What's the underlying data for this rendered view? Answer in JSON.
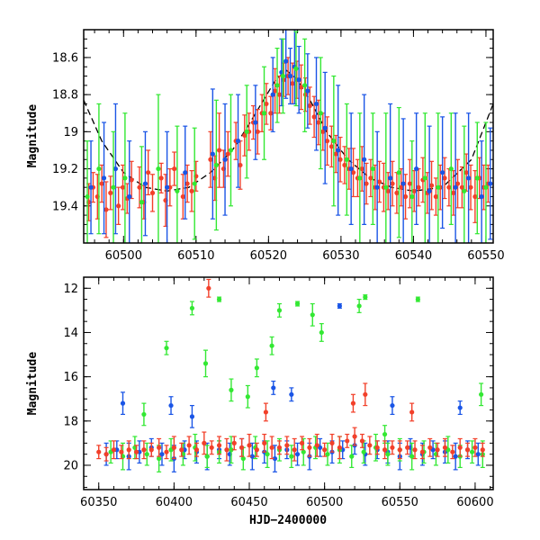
{
  "colors": {
    "green": "#33e833",
    "blue": "#1a55e6",
    "red": "#f2402a",
    "model": "#000000",
    "frame": "#000000"
  },
  "chart_data": [
    {
      "type": "scatter",
      "title": "",
      "xlabel": "",
      "ylabel": "Magnitude",
      "xlim": [
        60494.5,
        60551
      ],
      "ylim": [
        19.6,
        18.45
      ],
      "y_inverted": true,
      "grid": false,
      "x_ticks": [
        60500,
        60510,
        60520,
        60530,
        60540,
        60550
      ],
      "x_tick_labels": [
        "60500",
        "60510",
        "60520",
        "60530",
        "60540",
        "60550"
      ],
      "y_ticks": [
        18.6,
        18.8,
        19.0,
        19.2,
        19.4
      ],
      "y_tick_labels": [
        "18.6",
        "18.8",
        "19",
        "19.2",
        "19.4"
      ],
      "model_curve": {
        "x": [
          60494.5,
          60497,
          60500,
          60503,
          60506,
          60509,
          60512,
          60515,
          60517,
          60519,
          60521,
          60522.5,
          60524,
          60526,
          60528,
          60531,
          60534,
          60537,
          60540,
          60544,
          60548,
          60551
        ],
        "y": [
          18.83,
          19.05,
          19.22,
          19.3,
          19.32,
          19.3,
          19.22,
          19.1,
          18.98,
          18.85,
          18.72,
          18.67,
          18.72,
          18.85,
          19.0,
          19.15,
          19.25,
          19.3,
          19.32,
          19.3,
          19.15,
          18.85
        ]
      },
      "series": [
        {
          "color_key": "red",
          "x": [
            60495.2,
            60495.8,
            60496.4,
            60497.0,
            60497.6,
            60498.2,
            60499.3,
            60499.9,
            60500.5,
            60501.1,
            60502.2,
            60502.8,
            60503.4,
            60504.0,
            60505.2,
            60505.8,
            60506.4,
            60507.0,
            60508.2,
            60508.8,
            60509.4,
            60510.0,
            60512.0,
            60512.6,
            60513.2,
            60513.8,
            60514.4,
            60515.5,
            60516.1,
            60516.7,
            60517.3,
            60517.9,
            60518.5,
            60519.1,
            60519.7,
            60520.3,
            60520.9,
            60521.5,
            60522.1,
            60522.7,
            60523.3,
            60523.9,
            60524.5,
            60525.1,
            60525.7,
            60526.3,
            60526.9,
            60527.5,
            60528.1,
            60528.7,
            60529.3,
            60529.9,
            60530.5,
            60531.1,
            60531.7,
            60532.3,
            60532.9,
            60533.5,
            60534.1,
            60534.7,
            60535.3,
            60535.9,
            60536.5,
            60537.1,
            60537.7,
            60538.3,
            60538.9,
            60539.5,
            60540.1,
            60540.7,
            60541.3,
            60541.9,
            60542.5,
            60543.1,
            60543.7,
            60544.3,
            60544.9,
            60545.5,
            60546.1,
            60546.7,
            60547.3,
            60547.9,
            60548.5,
            60549.1,
            60549.7,
            60550.3
          ],
          "y": [
            19.38,
            19.3,
            19.35,
            19.28,
            19.42,
            19.33,
            19.4,
            19.3,
            19.36,
            19.26,
            19.3,
            19.38,
            19.22,
            19.33,
            19.25,
            19.37,
            19.3,
            19.2,
            19.35,
            19.28,
            19.32,
            19.24,
            19.15,
            19.25,
            19.1,
            19.2,
            19.12,
            19.05,
            19.18,
            19.02,
            19.0,
            18.95,
            19.0,
            18.9,
            18.85,
            18.9,
            18.78,
            18.8,
            18.72,
            18.7,
            18.74,
            18.72,
            18.76,
            18.8,
            18.86,
            18.92,
            18.95,
            19.0,
            19.05,
            19.08,
            19.12,
            19.15,
            19.18,
            19.2,
            19.22,
            19.25,
            19.2,
            19.28,
            19.25,
            19.3,
            19.27,
            19.3,
            19.32,
            19.28,
            19.33,
            19.3,
            19.35,
            19.28,
            19.32,
            19.3,
            19.26,
            19.33,
            19.29,
            19.35,
            19.3,
            19.25,
            19.3,
            19.33,
            19.28,
            19.3,
            19.22,
            19.3,
            19.35,
            19.25,
            19.3,
            19.28
          ],
          "err": [
            0.1,
            0.08,
            0.12,
            0.1,
            0.15,
            0.09,
            0.1,
            0.12,
            0.08,
            0.1,
            0.11,
            0.09,
            0.12,
            0.1,
            0.08,
            0.14,
            0.1,
            0.09,
            0.12,
            0.1,
            0.11,
            0.08,
            0.15,
            0.12,
            0.2,
            0.1,
            0.12,
            0.1,
            0.13,
            0.11,
            0.1,
            0.09,
            0.12,
            0.1,
            0.11,
            0.09,
            0.12,
            0.1,
            0.09,
            0.1,
            0.11,
            0.1,
            0.12,
            0.09,
            0.1,
            0.11,
            0.12,
            0.1,
            0.13,
            0.11,
            0.1,
            0.12,
            0.1,
            0.11,
            0.13,
            0.1,
            0.12,
            0.11,
            0.1,
            0.12,
            0.11,
            0.13,
            0.1,
            0.12,
            0.11,
            0.1,
            0.12,
            0.13,
            0.11,
            0.1,
            0.12,
            0.11,
            0.13,
            0.1,
            0.12,
            0.11,
            0.1,
            0.12,
            0.13,
            0.11,
            0.1,
            0.12,
            0.14,
            0.11,
            0.12,
            0.1
          ]
        },
        {
          "color_key": "blue",
          "x": [
            60495.5,
            60497.3,
            60498.9,
            60500.8,
            60503.0,
            60506.0,
            60508.5,
            60512.3,
            60514.0,
            60515.8,
            60518.2,
            60520.6,
            60521.8,
            60522.4,
            60523.0,
            60523.6,
            60524.2,
            60525.4,
            60526.6,
            60527.8,
            60529.6,
            60531.4,
            60533.2,
            60535.0,
            60536.8,
            60538.6,
            60540.4,
            60542.2,
            60544.0,
            60545.8,
            60547.6,
            60549.4,
            60550.6
          ],
          "y": [
            19.3,
            19.25,
            19.2,
            19.35,
            19.28,
            19.3,
            19.22,
            19.12,
            19.15,
            19.05,
            18.95,
            18.8,
            18.68,
            18.62,
            18.7,
            18.65,
            18.72,
            18.78,
            18.85,
            18.98,
            19.1,
            19.2,
            19.15,
            19.3,
            19.25,
            19.28,
            19.2,
            19.32,
            19.22,
            19.3,
            19.25,
            19.35,
            19.28
          ],
          "err": [
            0.25,
            0.3,
            0.35,
            0.3,
            0.28,
            0.3,
            0.25,
            0.35,
            0.3,
            0.25,
            0.2,
            0.2,
            0.18,
            0.2,
            0.15,
            0.2,
            0.18,
            0.2,
            0.25,
            0.3,
            0.35,
            0.3,
            0.35,
            0.3,
            0.4,
            0.35,
            0.3,
            0.35,
            0.3,
            0.4,
            0.35,
            0.3,
            0.3
          ]
        },
        {
          "color_key": "green",
          "x": [
            60495.0,
            60496.6,
            60498.6,
            60500.2,
            60502.5,
            60504.8,
            60507.4,
            60509.8,
            60512.8,
            60514.8,
            60517.0,
            60519.4,
            60521.2,
            60522.0,
            60523.8,
            60525.0,
            60527.2,
            60529.0,
            60530.8,
            60532.6,
            60534.4,
            60536.2,
            60538.0,
            60539.8,
            60541.6,
            60543.4,
            60545.2,
            60547.0,
            60548.8,
            60550.0
          ],
          "y": [
            19.35,
            19.2,
            19.3,
            19.25,
            19.38,
            19.2,
            19.32,
            19.28,
            19.18,
            19.1,
            19.0,
            18.9,
            18.75,
            18.7,
            18.66,
            18.75,
            18.9,
            19.05,
            19.15,
            19.25,
            19.2,
            19.3,
            19.22,
            19.35,
            19.25,
            19.3,
            19.2,
            19.32,
            19.25,
            19.3
          ],
          "err": [
            0.3,
            0.35,
            0.3,
            0.35,
            0.3,
            0.4,
            0.35,
            0.3,
            0.35,
            0.3,
            0.25,
            0.25,
            0.2,
            0.2,
            0.2,
            0.25,
            0.3,
            0.35,
            0.3,
            0.35,
            0.3,
            0.4,
            0.35,
            0.3,
            0.35,
            0.4,
            0.3,
            0.35,
            0.3,
            0.35
          ]
        }
      ]
    },
    {
      "type": "scatter",
      "title": "",
      "xlabel": "HJD−2400000",
      "ylabel": "Magnitude",
      "xlim": [
        60340,
        60612
      ],
      "ylim": [
        21.1,
        11.5
      ],
      "y_inverted": true,
      "grid": false,
      "x_ticks": [
        60350,
        60400,
        60450,
        60500,
        60550,
        60600
      ],
      "x_tick_labels": [
        "60350",
        "60400",
        "60450",
        "60500",
        "60550",
        "60600"
      ],
      "y_ticks": [
        12,
        14,
        16,
        18,
        20
      ],
      "y_tick_labels": [
        "12",
        "14",
        "16",
        "18",
        "20"
      ],
      "series": [
        {
          "color_key": "blue",
          "x": [
            60355,
            60362,
            60370,
            60377,
            60385,
            60392,
            60400,
            60407,
            60415,
            60422,
            60430,
            60437,
            60445,
            60452,
            60460,
            60467,
            60475,
            60482,
            60490,
            60497,
            60505,
            60512,
            60520,
            60527,
            60535,
            60542,
            60550,
            60557,
            60565,
            60572,
            60580,
            60587,
            60595,
            60602,
            60366,
            60398,
            60412,
            60466,
            60478,
            60510,
            60545,
            60590
          ],
          "y": [
            19.5,
            19.3,
            19.6,
            19.4,
            19.2,
            19.5,
            19.7,
            19.3,
            19.4,
            19.6,
            19.3,
            19.5,
            19.2,
            19.6,
            19.4,
            19.7,
            19.3,
            19.5,
            19.6,
            19.2,
            19.4,
            19.3,
            19.1,
            19.5,
            19.3,
            19.4,
            19.6,
            19.2,
            19.5,
            19.3,
            19.4,
            19.6,
            19.3,
            19.5,
            17.2,
            17.3,
            17.8,
            16.5,
            16.8,
            12.8,
            17.3,
            17.4
          ],
          "err": [
            0.5,
            0.4,
            0.6,
            0.5,
            0.4,
            0.5,
            0.6,
            0.4,
            0.5,
            0.6,
            0.4,
            0.5,
            0.4,
            0.6,
            0.5,
            0.6,
            0.4,
            0.5,
            0.6,
            0.4,
            0.5,
            0.4,
            0.4,
            0.5,
            0.4,
            0.5,
            0.6,
            0.4,
            0.5,
            0.4,
            0.5,
            0.6,
            0.4,
            0.5,
            0.5,
            0.4,
            0.5,
            0.3,
            0.3,
            0.1,
            0.4,
            0.3
          ]
        },
        {
          "color_key": "green",
          "x": [
            60358,
            60366,
            60374,
            60382,
            60390,
            60398,
            60406,
            60414,
            60422,
            60430,
            60438,
            60446,
            60454,
            60462,
            60470,
            60478,
            60486,
            60494,
            60502,
            60510,
            60518,
            60526,
            60534,
            60542,
            60550,
            60558,
            60566,
            60574,
            60582,
            60590,
            60598,
            60605,
            60395,
            60412,
            60430,
            60438,
            60455,
            60465,
            60470,
            60482,
            60492,
            60498,
            60523,
            60527,
            60540,
            60562,
            60604,
            60380,
            60421,
            60449
          ],
          "y": [
            19.4,
            19.6,
            19.2,
            19.5,
            19.7,
            19.3,
            19.5,
            19.2,
            19.6,
            19.4,
            19.3,
            19.7,
            19.2,
            19.5,
            19.3,
            19.6,
            19.4,
            19.2,
            19.5,
            19.3,
            19.6,
            19.4,
            19.2,
            19.5,
            19.3,
            19.6,
            19.4,
            19.5,
            19.3,
            19.6,
            19.4,
            19.5,
            14.7,
            12.9,
            12.5,
            16.6,
            15.6,
            14.6,
            13.0,
            12.7,
            13.2,
            14.0,
            12.8,
            12.4,
            18.6,
            12.5,
            16.8,
            17.7,
            15.4,
            16.9
          ],
          "err": [
            0.5,
            0.6,
            0.5,
            0.5,
            0.6,
            0.5,
            0.5,
            0.6,
            0.5,
            0.5,
            0.6,
            0.5,
            0.5,
            0.6,
            0.5,
            0.5,
            0.6,
            0.5,
            0.5,
            0.6,
            0.5,
            0.5,
            0.6,
            0.5,
            0.5,
            0.6,
            0.5,
            0.5,
            0.6,
            0.5,
            0.5,
            0.6,
            0.3,
            0.3,
            0.1,
            0.5,
            0.4,
            0.4,
            0.3,
            0.1,
            0.5,
            0.4,
            0.3,
            0.1,
            0.4,
            0.1,
            0.5,
            0.5,
            0.6,
            0.5
          ]
        },
        {
          "color_key": "red",
          "x": [
            60350,
            60355,
            60360,
            60365,
            60370,
            60375,
            60380,
            60385,
            60390,
            60395,
            60400,
            60405,
            60410,
            60415,
            60420,
            60425,
            60430,
            60435,
            60440,
            60445,
            60450,
            60455,
            60460,
            60465,
            60470,
            60475,
            60480,
            60485,
            60490,
            60495,
            60500,
            60505,
            60510,
            60515,
            60520,
            60525,
            60530,
            60535,
            60540,
            60545,
            60550,
            60555,
            60560,
            60565,
            60570,
            60575,
            60580,
            60585,
            60590,
            60595,
            60600,
            60605,
            60423,
            60461,
            60519,
            60527,
            60558
          ],
          "y": [
            19.4,
            19.5,
            19.3,
            19.4,
            19.3,
            19.4,
            19.3,
            19.3,
            19.2,
            19.4,
            19.2,
            19.3,
            19.1,
            19.3,
            19.0,
            19.2,
            19.1,
            19.3,
            19.0,
            19.2,
            19.1,
            19.3,
            19.0,
            19.2,
            19.2,
            19.1,
            19.3,
            19.0,
            19.2,
            19.1,
            19.3,
            19.0,
            19.2,
            18.9,
            18.7,
            18.9,
            19.1,
            19.2,
            19.3,
            19.2,
            19.3,
            19.2,
            19.3,
            19.4,
            19.2,
            19.3,
            19.2,
            19.4,
            19.2,
            19.3,
            19.2,
            19.3,
            12.0,
            17.6,
            17.2,
            16.8,
            17.6
          ],
          "err": [
            0.3,
            0.3,
            0.4,
            0.3,
            0.4,
            0.3,
            0.4,
            0.3,
            0.4,
            0.3,
            0.5,
            0.3,
            0.4,
            0.3,
            0.5,
            0.3,
            0.4,
            0.5,
            0.3,
            0.4,
            0.5,
            0.3,
            0.4,
            0.5,
            0.3,
            0.4,
            0.5,
            0.3,
            0.4,
            0.5,
            0.3,
            0.4,
            0.5,
            0.3,
            0.4,
            0.3,
            0.4,
            0.3,
            0.4,
            0.3,
            0.4,
            0.3,
            0.4,
            0.3,
            0.4,
            0.3,
            0.4,
            0.3,
            0.4,
            0.3,
            0.4,
            0.3,
            0.4,
            0.4,
            0.4,
            0.5,
            0.4
          ]
        }
      ]
    }
  ]
}
